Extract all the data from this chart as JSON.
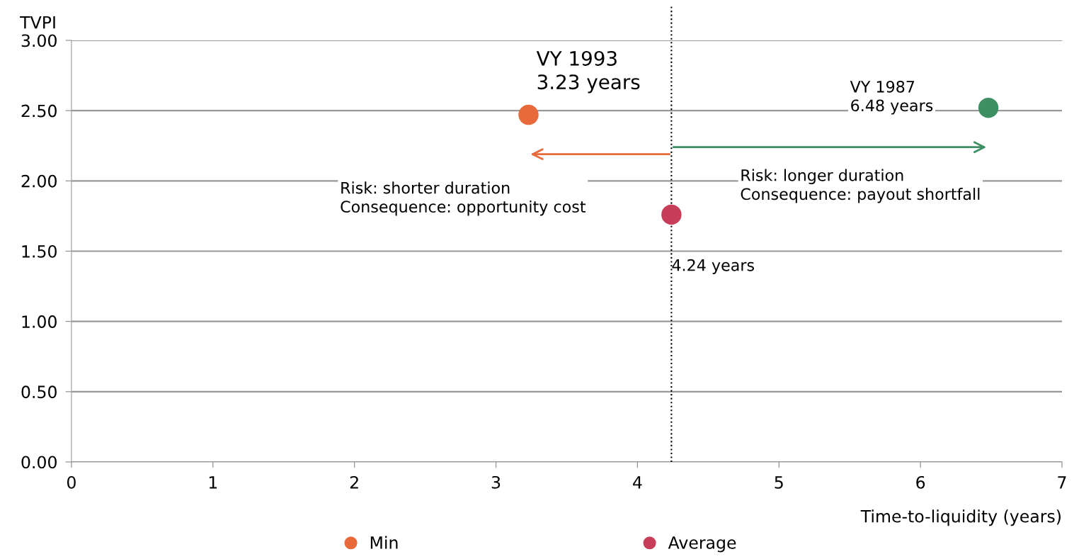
{
  "chart_data": {
    "type": "scatter",
    "xlabel": "Time-to-liquidity (years)",
    "ylabel": "TVPI",
    "series": [
      {
        "name": "Min",
        "color": "#e8693a",
        "x": [
          3.23
        ],
        "values": [
          2.47
        ]
      },
      {
        "name": "Average",
        "color": "#c73e5a",
        "x": [
          4.24
        ],
        "values": [
          1.76
        ]
      },
      {
        "color": "#3f8f65",
        "x": [
          6.48
        ],
        "values": [
          2.52
        ]
      }
    ],
    "xlim": [
      0,
      7
    ],
    "xticks": [
      0,
      1,
      2,
      3,
      4,
      5,
      6,
      7
    ],
    "ylim": [
      0,
      3
    ],
    "yticks": [
      {
        "value": 0,
        "label": "0.00"
      },
      {
        "value": 0.5,
        "label": "0.50"
      },
      {
        "value": 1,
        "label": "1.00"
      },
      {
        "value": 1.5,
        "label": "1.50"
      },
      {
        "value": 2,
        "label": "2.00"
      },
      {
        "value": 2.5,
        "label": "2.50"
      },
      {
        "value": 3,
        "label": "3.00"
      }
    ],
    "grid": "y",
    "legend": "bottom",
    "marker": "circle",
    "ref_lines": [
      {
        "axis": "x",
        "value": 4.24,
        "color": "#000000",
        "line_style": "dotted"
      }
    ],
    "annotations": [
      {
        "text": "VY 1993\n3.23 years",
        "x": 3.23,
        "y": 2.47
      },
      "VY 1987\n6.48 years",
      {
        "text": "4.24 years",
        "x": 4.24,
        "y": 1.76
      },
      "Risk: shorter duration\nConsequence: opportunity cost",
      "Risk: longer duration\nConsequence: payout shortfall"
    ]
  }
}
